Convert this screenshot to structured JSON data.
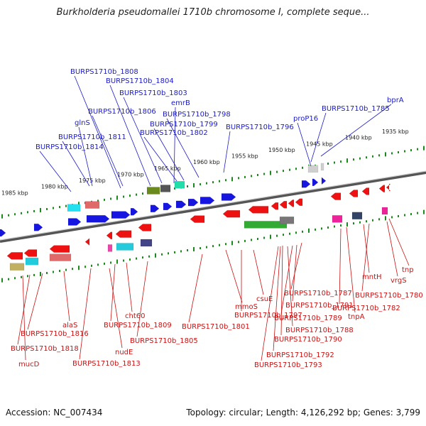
{
  "title": "Burkholderia pseudomallei 1710b chromosome I, complete seque...",
  "footer": {
    "accession": "Accession: NC_007434",
    "summary": "Topology: circular; Length: 4,126,292 bp; Genes: 3,799"
  },
  "colors": {
    "forward_label": "#1a1acc",
    "reverse_label": "#cc1111",
    "backbone": "#888888"
  },
  "kbp_ticks": [
    "1985 kbp",
    "1980 kbp",
    "1975 kbp",
    "1970 kbp",
    "1965 kbp",
    "1960 kbp",
    "1955 kbp",
    "1950 kbp",
    "1945 kbp",
    "1940 kbp",
    "1935 kbp"
  ],
  "forward_labels": [
    "BURPS1710b_1808",
    "BURPS1710b_1804",
    "BURPS1710b_1803",
    "emrB",
    "BURPS1710b_1806",
    "BURPS1710b_1798",
    "BURPS1710b_1799",
    "glnS",
    "BURPS1710b_1802",
    "BURPS1710b_1811",
    "BURPS1710b_1814",
    "BURPS1710b_1796",
    "proP16",
    "BURPS1710b_1785",
    "bprA"
  ],
  "reverse_labels": [
    "alaS",
    "BURPS1710b_1816",
    "BURPS1710b_1818",
    "mucD",
    "cht60",
    "BURPS1710b_1809",
    "nudE",
    "BURPS1710b_1813",
    "BURPS1710b_1805",
    "BURPS1710b_1801",
    "mmoS",
    "BURPS1710b_1797",
    "csuE",
    "BURPS1710b_1787",
    "BURPS1710b_1791",
    "BURPS1710b_1789",
    "BURPS1710b_1788",
    "BURPS1710b_1790",
    "BURPS1710b_1792",
    "BURPS1710b_1793",
    "BURPS1710b_1782",
    "tnpA",
    "BURPS1710b_1780",
    "mntH",
    "vrgS",
    "tnp"
  ]
}
